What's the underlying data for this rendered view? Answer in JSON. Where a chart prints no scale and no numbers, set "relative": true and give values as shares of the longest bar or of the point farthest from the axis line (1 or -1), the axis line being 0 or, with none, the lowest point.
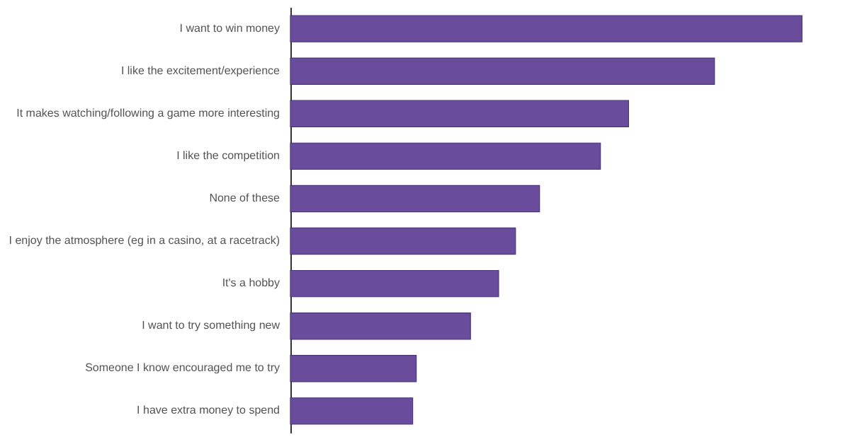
{
  "chart_data": {
    "type": "bar",
    "orientation": "horizontal",
    "relative": true,
    "categories": [
      "I want to win money",
      "I like the excitement/experience",
      "It makes watching/following a game more interesting",
      "I like the competition",
      "None of these",
      "I enjoy the atmosphere (eg in a casino, at a racetrack)",
      "It's a hobby",
      "I want to try something new",
      "Someone I know encouraged me to try",
      "I have extra money to spend"
    ],
    "values": [
      1,
      0.829,
      0.661,
      0.606,
      0.487,
      0.44,
      0.407,
      0.352,
      0.246,
      0.239
    ],
    "color": "#6a4c9c"
  }
}
